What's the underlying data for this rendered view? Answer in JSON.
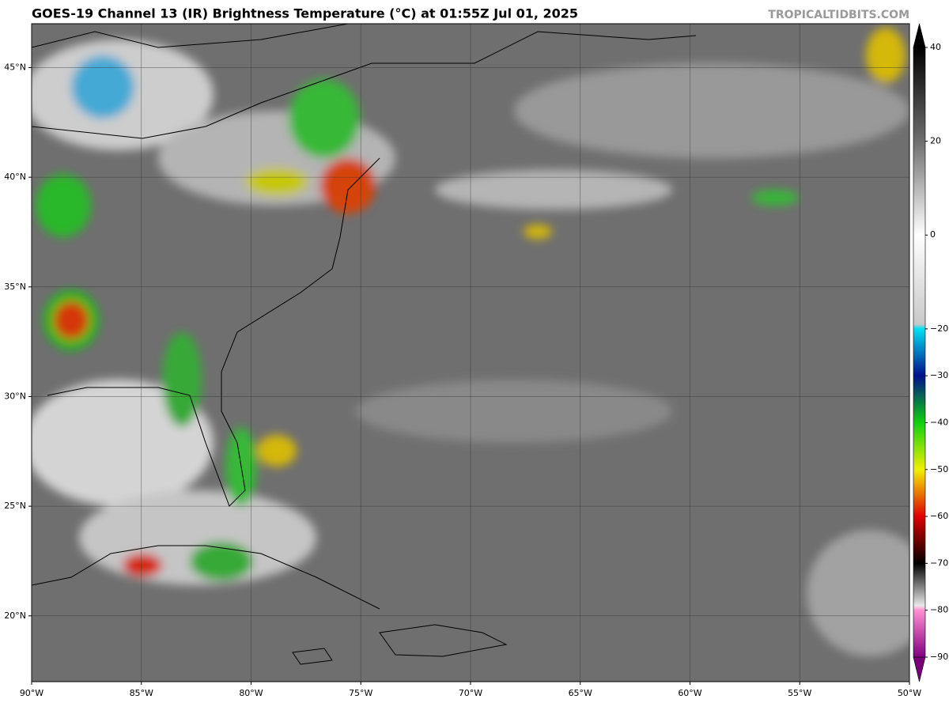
{
  "header": {
    "title": "GOES-19 Channel 13 (IR) Brightness Temperature (°C) at 01:55Z Jul 01, 2025",
    "credit": "TROPICALTIDBITS.COM"
  },
  "map": {
    "lonlim": [
      -90,
      -50
    ],
    "latlim": [
      17,
      47
    ],
    "lon_ticks": [
      {
        "value": -90,
        "label": "90°W"
      },
      {
        "value": -85,
        "label": "85°W"
      },
      {
        "value": -80,
        "label": "80°W"
      },
      {
        "value": -75,
        "label": "75°W"
      },
      {
        "value": -70,
        "label": "70°W"
      },
      {
        "value": -65,
        "label": "65°W"
      },
      {
        "value": -60,
        "label": "60°W"
      },
      {
        "value": -55,
        "label": "55°W"
      },
      {
        "value": -50,
        "label": "50°W"
      }
    ],
    "lat_ticks": [
      {
        "value": 20,
        "label": "20°N"
      },
      {
        "value": 25,
        "label": "25°N"
      },
      {
        "value": 30,
        "label": "30°N"
      },
      {
        "value": 35,
        "label": "35°N"
      },
      {
        "value": 40,
        "label": "40°N"
      },
      {
        "value": 45,
        "label": "45°N"
      }
    ],
    "grid": true
  },
  "colorbar": {
    "lim": [
      -90,
      40
    ],
    "ticks": [
      40,
      20,
      0,
      {
        "value": -20,
        "label": "−20"
      },
      {
        "value": -30,
        "label": "−30"
      },
      {
        "value": -40,
        "label": "−40"
      },
      {
        "value": -50,
        "label": "−50"
      },
      {
        "value": -60,
        "label": "−60"
      },
      {
        "value": -70,
        "label": "−70"
      },
      {
        "value": -80,
        "label": "−80"
      },
      {
        "value": -90,
        "label": "−90"
      }
    ],
    "stops": [
      {
        "value": 40,
        "color": "#000000"
      },
      {
        "value": 20,
        "color": "#6e6e6e"
      },
      {
        "value": 0,
        "color": "#ffffff"
      },
      {
        "value": -19,
        "color": "#c8c8c8"
      },
      {
        "value": -20,
        "color": "#00e0f0"
      },
      {
        "value": -30,
        "color": "#00108a"
      },
      {
        "value": -40,
        "color": "#10d010"
      },
      {
        "value": -50,
        "color": "#f0f000"
      },
      {
        "value": -60,
        "color": "#e00000"
      },
      {
        "value": -70,
        "color": "#000000"
      },
      {
        "value": -79,
        "color": "#e8e8e8"
      },
      {
        "value": -80,
        "color": "#ff90d0"
      },
      {
        "value": -90,
        "color": "#800080"
      }
    ],
    "lower_color": "#7a007a",
    "upper_color": "#000000"
  }
}
